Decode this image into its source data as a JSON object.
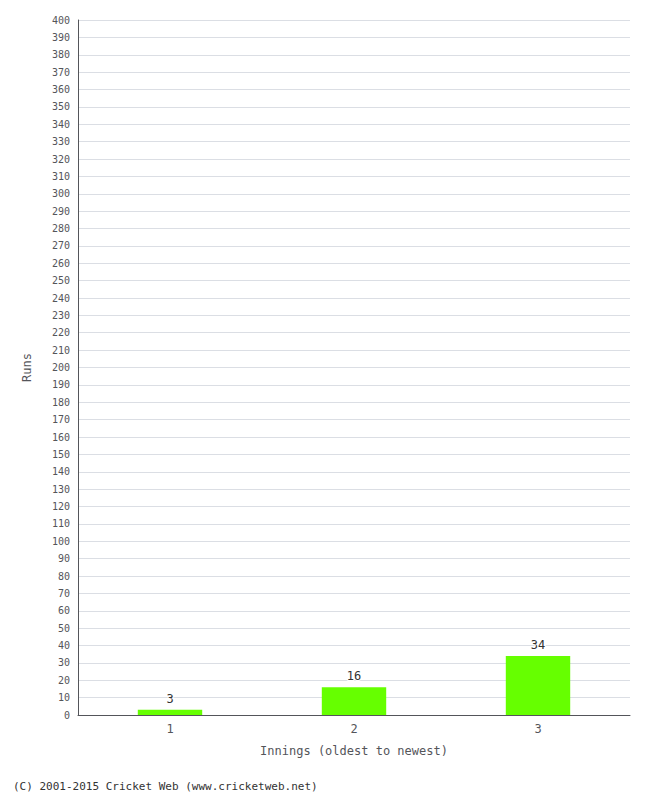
{
  "chart_data": {
    "type": "bar",
    "categories": [
      "1",
      "2",
      "3"
    ],
    "values": [
      3,
      16,
      34
    ],
    "color": "#66ff00",
    "xlabel": "Innings (oldest to newest)",
    "ylabel": "Runs",
    "ylim": [
      0,
      400
    ],
    "yticks": [
      0,
      10,
      20,
      30,
      40,
      50,
      60,
      70,
      80,
      90,
      100,
      110,
      120,
      130,
      140,
      150,
      160,
      170,
      180,
      190,
      200,
      210,
      220,
      230,
      240,
      250,
      260,
      270,
      280,
      290,
      300,
      310,
      320,
      330,
      340,
      350,
      360,
      370,
      380,
      390,
      400
    ],
    "grid": true,
    "data_labels": true,
    "annotations": [
      "(C) 2001-2015 Cricket Web (www.cricketweb.net)"
    ]
  }
}
